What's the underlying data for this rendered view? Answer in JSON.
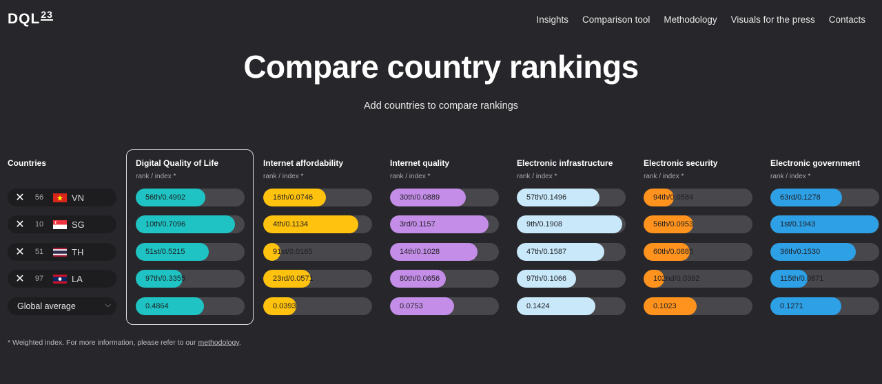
{
  "logo": {
    "text": "DQL",
    "sup": "23"
  },
  "nav": [
    "Insights",
    "Comparison tool",
    "Methodology",
    "Visuals for the press",
    "Contacts"
  ],
  "title": "Compare country rankings",
  "subtitle": "Add countries to compare rankings",
  "countries_header": "Countries",
  "countries": [
    {
      "rank": "56",
      "code": "VN",
      "flag": "vn-flag-icon"
    },
    {
      "rank": "10",
      "code": "SG",
      "flag": "sg-flag-icon"
    },
    {
      "rank": "51",
      "code": "TH",
      "flag": "th-flag-icon"
    },
    {
      "rank": "97",
      "code": "LA",
      "flag": "la-flag-icon"
    }
  ],
  "average_select": "Global average",
  "sub_label": "rank / index *",
  "metrics": [
    {
      "name": "Digital Quality of Life",
      "color": "#1fc3c3",
      "rows": [
        {
          "label": "56th/0.4992",
          "value": 0.4992
        },
        {
          "label": "10th/0.7096",
          "value": 0.7096
        },
        {
          "label": "51st/0.5215",
          "value": 0.5215
        },
        {
          "label": "97th/0.3355",
          "value": 0.3355
        },
        {
          "label": "0.4864",
          "value": 0.4864
        }
      ]
    },
    {
      "name": "Internet affordability",
      "color": "#ffc20e",
      "rows": [
        {
          "label": "16th/0.0746",
          "value": 0.0746
        },
        {
          "label": "4th/0.1134",
          "value": 0.1134
        },
        {
          "label": "91st/0.0185",
          "value": 0.0185
        },
        {
          "label": "23rd/0.0571",
          "value": 0.0571
        },
        {
          "label": "0.0393",
          "value": 0.0393
        }
      ]
    },
    {
      "name": "Internet quality",
      "color": "#c48ee8",
      "rows": [
        {
          "label": "30th/0.0889",
          "value": 0.0889
        },
        {
          "label": "3rd/0.1157",
          "value": 0.1157
        },
        {
          "label": "14th/0.1028",
          "value": 0.1028
        },
        {
          "label": "80th/0.0656",
          "value": 0.0656
        },
        {
          "label": "0.0753",
          "value": 0.0753
        }
      ]
    },
    {
      "name": "Electronic infrastructure",
      "color": "#c9e9fb",
      "rows": [
        {
          "label": "57th/0.1496",
          "value": 0.1496
        },
        {
          "label": "9th/0.1908",
          "value": 0.1908
        },
        {
          "label": "47th/0.1587",
          "value": 0.1587
        },
        {
          "label": "97th/0.1066",
          "value": 0.1066
        },
        {
          "label": "0.1424",
          "value": 0.1424
        }
      ]
    },
    {
      "name": "Electronic security",
      "color": "#ff931e",
      "rows": [
        {
          "label": "94th/0.0584",
          "value": 0.0584
        },
        {
          "label": "56th/0.0953",
          "value": 0.0953
        },
        {
          "label": "60th/0.0885",
          "value": 0.0885
        },
        {
          "label": "102nd/0.0392",
          "value": 0.0392
        },
        {
          "label": "0.1023",
          "value": 0.1023
        }
      ]
    },
    {
      "name": "Electronic government",
      "color": "#2ea0e6",
      "rows": [
        {
          "label": "63rd/0.1278",
          "value": 0.1278
        },
        {
          "label": "1st/0.1943",
          "value": 0.1943
        },
        {
          "label": "36th/0.1530",
          "value": 0.153
        },
        {
          "label": "115th/0.0671",
          "value": 0.0671
        },
        {
          "label": "0.1271",
          "value": 0.1271
        }
      ]
    }
  ],
  "metric_max": [
    0.78,
    0.13,
    0.128,
    0.197,
    0.21,
    0.195
  ],
  "footnote": {
    "text": "* Weighted index. For more information, please refer to our ",
    "link": "methodology",
    "end": "."
  }
}
